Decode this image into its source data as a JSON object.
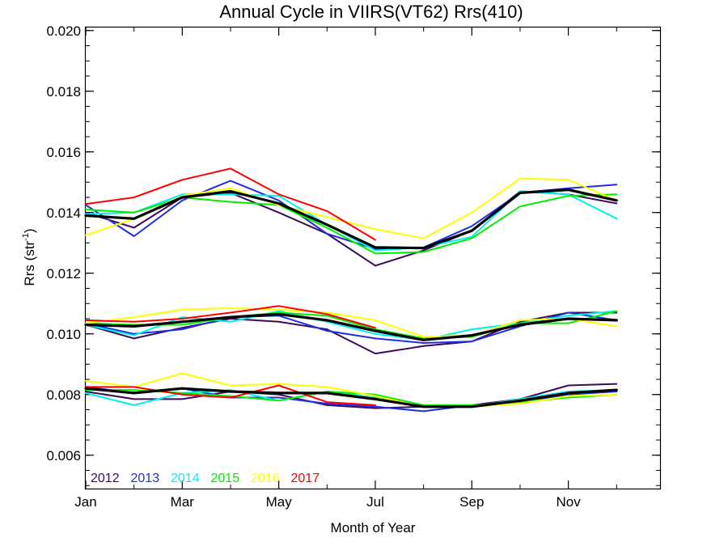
{
  "chart_data": {
    "type": "line",
    "title": "Annual Cycle in VIIRS(VT62) Rrs(410)",
    "xlabel": "Month of Year",
    "ylabel": "Rrs (str",
    "ylabel_sup": "-1",
    "ylabel_suffix": ")",
    "xlim": [
      1,
      12.9
    ],
    "ylim": [
      0.0049,
      0.0201
    ],
    "x_ticks": [
      {
        "v": 1,
        "label": "Jan"
      },
      {
        "v": 3,
        "label": "Mar"
      },
      {
        "v": 5,
        "label": "May"
      },
      {
        "v": 7,
        "label": "Jul"
      },
      {
        "v": 9,
        "label": "Sep"
      },
      {
        "v": 11,
        "label": "Nov"
      }
    ],
    "y_ticks": [
      {
        "v": 0.006,
        "label": "0.006"
      },
      {
        "v": 0.008,
        "label": "0.008"
      },
      {
        "v": 0.01,
        "label": "0.010"
      },
      {
        "v": 0.012,
        "label": "0.012"
      },
      {
        "v": 0.014,
        "label": "0.014"
      },
      {
        "v": 0.016,
        "label": "0.016"
      },
      {
        "v": 0.018,
        "label": "0.018"
      },
      {
        "v": 0.02,
        "label": "0.020"
      }
    ],
    "grid": false,
    "legend_position": "bottom-left",
    "legend": [
      {
        "label": "2012",
        "color": "#3c0a5a"
      },
      {
        "label": "2013",
        "color": "#1f2ee0"
      },
      {
        "label": "2014",
        "color": "#00f0f0"
      },
      {
        "label": "2015",
        "color": "#00ee00"
      },
      {
        "label": "2016",
        "color": "#ffff00"
      },
      {
        "label": "2017",
        "color": "#ff0000"
      }
    ],
    "x": [
      1,
      2,
      3,
      4,
      5,
      6,
      7,
      8,
      9,
      10,
      11,
      12
    ],
    "series": [
      {
        "name": "2012",
        "color": "#3c0a5a",
        "width": 2,
        "groups": [
          [
            0.014,
            0.0135,
            0.0145,
            0.01465,
            0.014,
            0.0133,
            0.01225,
            0.01275,
            0.0134,
            0.0147,
            0.0146,
            0.0143
          ],
          [
            0.0103,
            0.00985,
            0.0102,
            0.0105,
            0.0104,
            0.01015,
            0.00935,
            0.0096,
            0.00975,
            0.0104,
            0.0107,
            0.0107
          ],
          [
            0.0081,
            0.00785,
            0.00785,
            0.0081,
            0.008,
            0.00765,
            0.00755,
            0.0076,
            0.00765,
            0.00785,
            0.0083,
            0.00835
          ]
        ]
      },
      {
        "name": "2013",
        "color": "#1f2ee0",
        "width": 2,
        "groups": [
          [
            0.01425,
            0.01322,
            0.0144,
            0.01505,
            0.0144,
            0.0133,
            0.0128,
            0.01285,
            0.01355,
            0.01465,
            0.0148,
            0.01492
          ],
          [
            0.01035,
            0.01,
            0.01015,
            0.01055,
            0.0106,
            0.0101,
            0.00985,
            0.0097,
            0.00975,
            0.01025,
            0.0107,
            0.01045
          ],
          [
            0.00825,
            0.00805,
            0.0082,
            0.0079,
            0.0079,
            0.0077,
            0.0076,
            0.00745,
            0.00765,
            0.00775,
            0.008,
            0.0081
          ]
        ]
      },
      {
        "name": "2014",
        "color": "#00f0f0",
        "width": 2,
        "groups": [
          [
            0.01395,
            0.014,
            0.0146,
            0.0146,
            0.01455,
            0.0136,
            0.01275,
            0.01285,
            0.0132,
            0.0147,
            0.0146,
            0.0138
          ],
          [
            0.0103,
            0.00995,
            0.01055,
            0.0104,
            0.01075,
            0.0104,
            0.01,
            0.0098,
            0.01015,
            0.01035,
            0.0106,
            0.01075
          ],
          [
            0.00805,
            0.00765,
            0.00805,
            0.00815,
            0.0078,
            0.0081,
            0.0079,
            0.0076,
            0.0076,
            0.00785,
            0.0081,
            0.00815
          ]
        ]
      },
      {
        "name": "2015",
        "color": "#00ee00",
        "width": 2,
        "groups": [
          [
            0.0141,
            0.014,
            0.0145,
            0.01435,
            0.01425,
            0.0135,
            0.01265,
            0.0127,
            0.01315,
            0.0142,
            0.01455,
            0.0146
          ],
          [
            0.01035,
            0.0103,
            0.0103,
            0.01055,
            0.0107,
            0.0106,
            0.01015,
            0.00985,
            0.0099,
            0.01035,
            0.01035,
            0.01075
          ],
          [
            0.00815,
            0.00815,
            0.00805,
            0.00795,
            0.0078,
            0.0081,
            0.008,
            0.00765,
            0.00765,
            0.00775,
            0.0079,
            0.008
          ]
        ]
      },
      {
        "name": "2016",
        "color": "#ffff00",
        "width": 2,
        "groups": [
          [
            0.01325,
            0.0138,
            0.01455,
            0.0148,
            0.01425,
            0.01385,
            0.01345,
            0.01315,
            0.014,
            0.01512,
            0.01508,
            0.0144
          ],
          [
            0.01035,
            0.01055,
            0.0108,
            0.01085,
            0.0108,
            0.0107,
            0.01045,
            0.0099,
            0.00995,
            0.01045,
            0.0105,
            0.01025
          ],
          [
            0.00845,
            0.00825,
            0.0087,
            0.0083,
            0.00835,
            0.00825,
            0.00795,
            0.0076,
            0.0076,
            0.0077,
            0.00795,
            0.008
          ]
        ]
      },
      {
        "name": "2017",
        "color": "#ff0000",
        "width": 2,
        "groups": [
          [
            0.01428,
            0.0145,
            0.01508,
            0.01545,
            0.0146,
            0.01405,
            0.0131
          ],
          [
            0.01045,
            0.0104,
            0.0105,
            0.0107,
            0.01092,
            0.01065,
            0.0102
          ],
          [
            0.00825,
            0.00825,
            0.008,
            0.0079,
            0.0083,
            0.00775,
            0.00765
          ]
        ]
      },
      {
        "name": "",
        "color": "#000000",
        "width": 3.2,
        "groups": [
          [
            0.0139,
            0.0138,
            0.0145,
            0.0147,
            0.0143,
            0.0136,
            0.01285,
            0.01283,
            0.0134,
            0.01465,
            0.01475,
            0.0144
          ],
          [
            0.0103,
            0.01025,
            0.0104,
            0.01055,
            0.01065,
            0.01045,
            0.0101,
            0.0098,
            0.00995,
            0.0103,
            0.0105,
            0.01045
          ],
          [
            0.0082,
            0.00805,
            0.0082,
            0.0081,
            0.00805,
            0.00805,
            0.00785,
            0.0076,
            0.0076,
            0.0078,
            0.00805,
            0.00815
          ]
        ]
      }
    ]
  }
}
